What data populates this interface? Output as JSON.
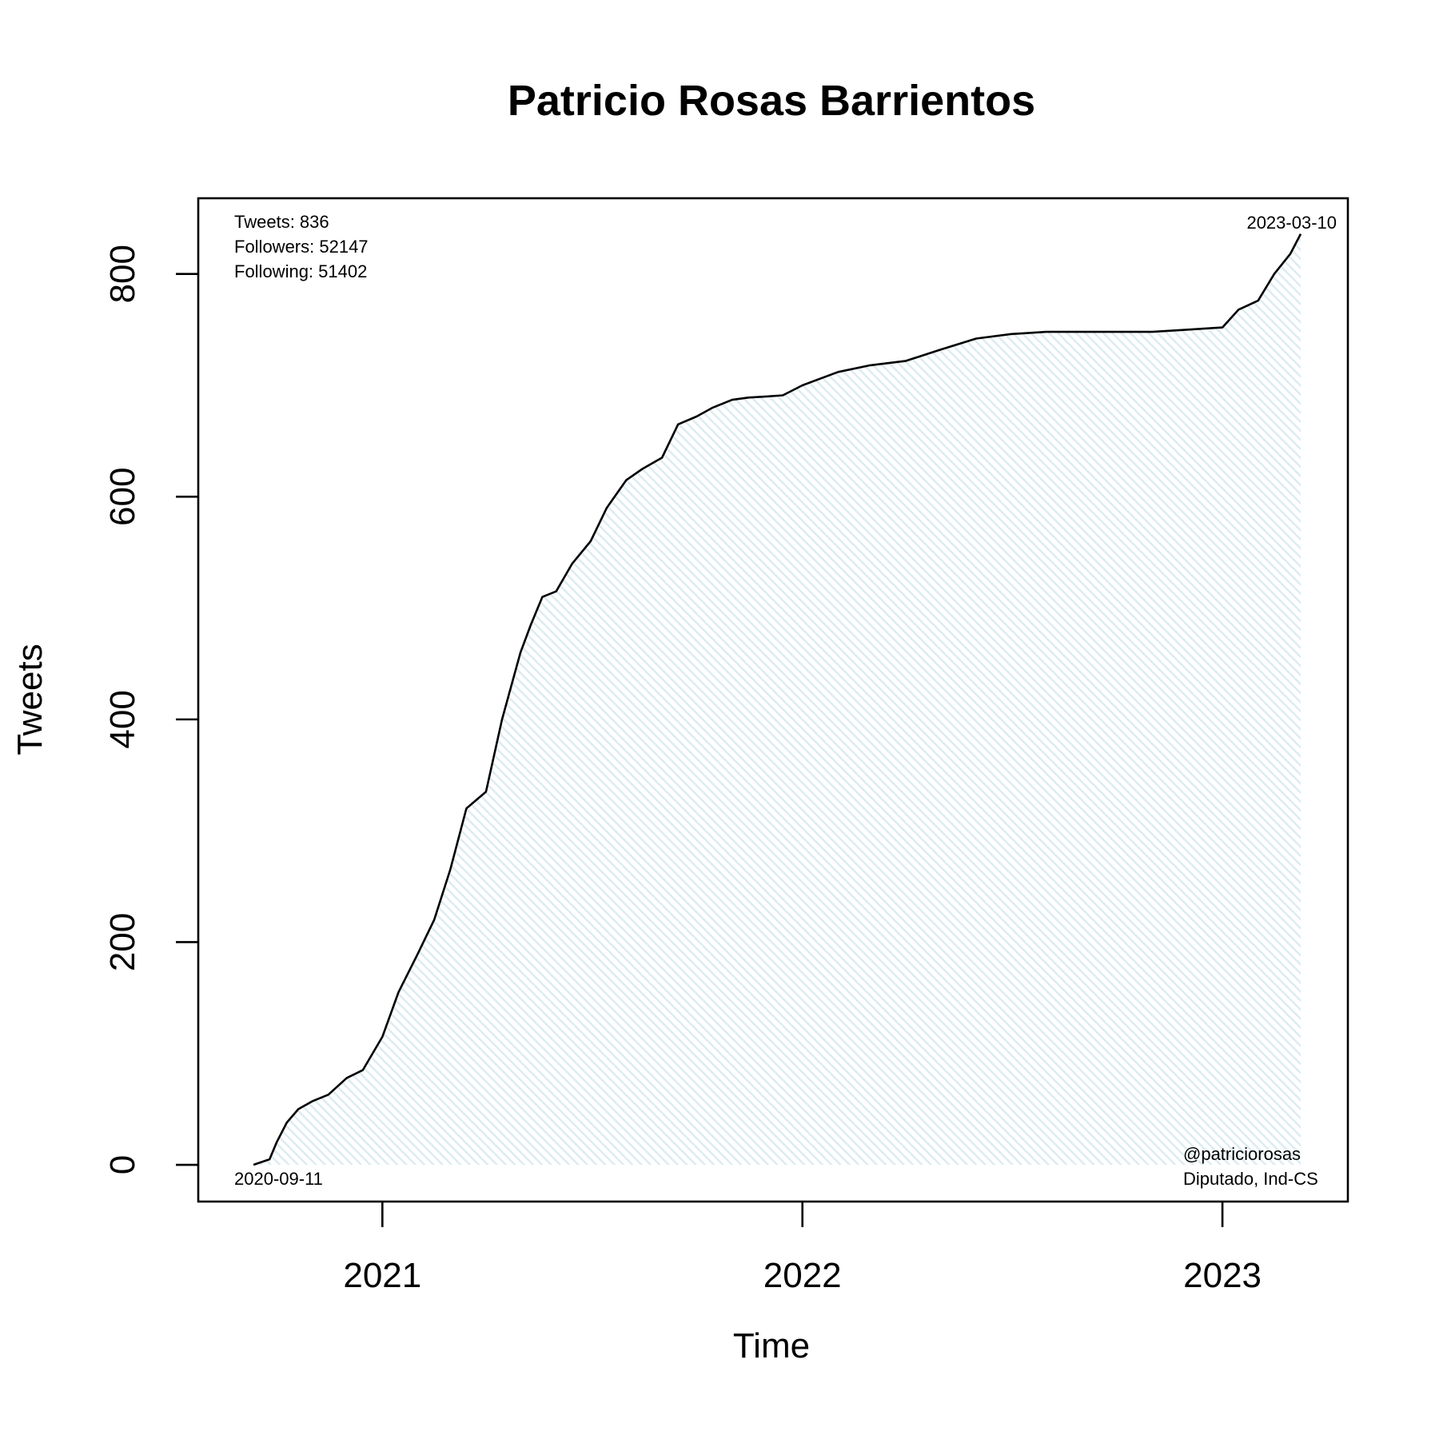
{
  "chart_data": {
    "type": "area",
    "title": "Patricio Rosas Barrientos",
    "xlabel": "Time",
    "ylabel": "Tweets",
    "x_ticks": [
      "2021",
      "2022",
      "2023"
    ],
    "y_ticks": [
      0,
      200,
      400,
      600,
      800
    ],
    "xlim": [
      "2020-07-25",
      "2023-04-20"
    ],
    "ylim": [
      -33,
      868
    ],
    "grid": false,
    "stats": {
      "tweets": "Tweets: 836",
      "followers": "Followers: 52147",
      "following": "Following: 51402"
    },
    "start_date": "2020-09-11",
    "end_date": "2023-03-10",
    "handle": "@patriciorosas",
    "description": "Diputado, Ind-CS",
    "fill_color": "#e3f1f4",
    "line_color": "#000000",
    "series": [
      {
        "x": [
          "2020-09-11",
          "2020-09-25",
          "2020-10-01",
          "2020-10-10",
          "2020-10-20",
          "2020-11-01",
          "2020-11-15",
          "2020-12-01",
          "2020-12-15",
          "2021-01-01",
          "2021-01-15",
          "2021-02-01",
          "2021-02-15",
          "2021-03-01",
          "2021-03-15",
          "2021-04-01",
          "2021-04-15",
          "2021-05-01",
          "2021-05-10",
          "2021-05-20",
          "2021-06-01",
          "2021-06-15",
          "2021-07-01",
          "2021-07-15",
          "2021-08-01",
          "2021-08-15",
          "2021-09-01",
          "2021-09-15",
          "2021-10-01",
          "2021-10-15",
          "2021-11-01",
          "2021-11-15",
          "2021-12-01",
          "2021-12-15",
          "2022-01-01",
          "2022-02-01",
          "2022-03-01",
          "2022-04-01",
          "2022-05-01",
          "2022-06-01",
          "2022-07-01",
          "2022-08-01",
          "2022-09-01",
          "2022-10-01",
          "2022-11-01",
          "2022-12-01",
          "2023-01-01",
          "2023-01-15",
          "2023-02-01",
          "2023-02-15",
          "2023-03-01",
          "2023-03-10"
        ],
        "y": [
          0,
          5,
          20,
          38,
          50,
          57,
          63,
          78,
          85,
          115,
          155,
          190,
          220,
          265,
          320,
          335,
          400,
          460,
          485,
          510,
          515,
          540,
          560,
          590,
          615,
          625,
          635,
          665,
          672,
          680,
          687,
          689,
          690,
          691,
          700,
          712,
          718,
          722,
          732,
          742,
          746,
          748,
          748,
          748,
          748,
          750,
          752,
          768,
          776,
          800,
          818,
          836
        ]
      }
    ]
  }
}
